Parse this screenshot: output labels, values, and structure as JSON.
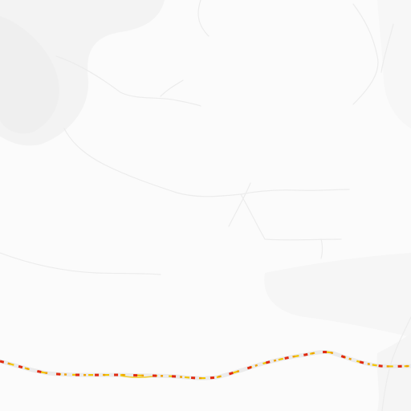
{
  "map": {
    "colors": {
      "background": "#fbfbfb",
      "terrain_shade": "#f3f3f3",
      "terrain_light": "#f7f7f7",
      "stream_line": "#ededed",
      "road_casing": "#ececec",
      "road_dash_red": "#e02810",
      "road_dash_orange": "#f0a000",
      "road_dash_yellow": "#f2c400"
    },
    "features": [
      "terrain-shading",
      "streams",
      "highway-route"
    ],
    "labels": []
  }
}
